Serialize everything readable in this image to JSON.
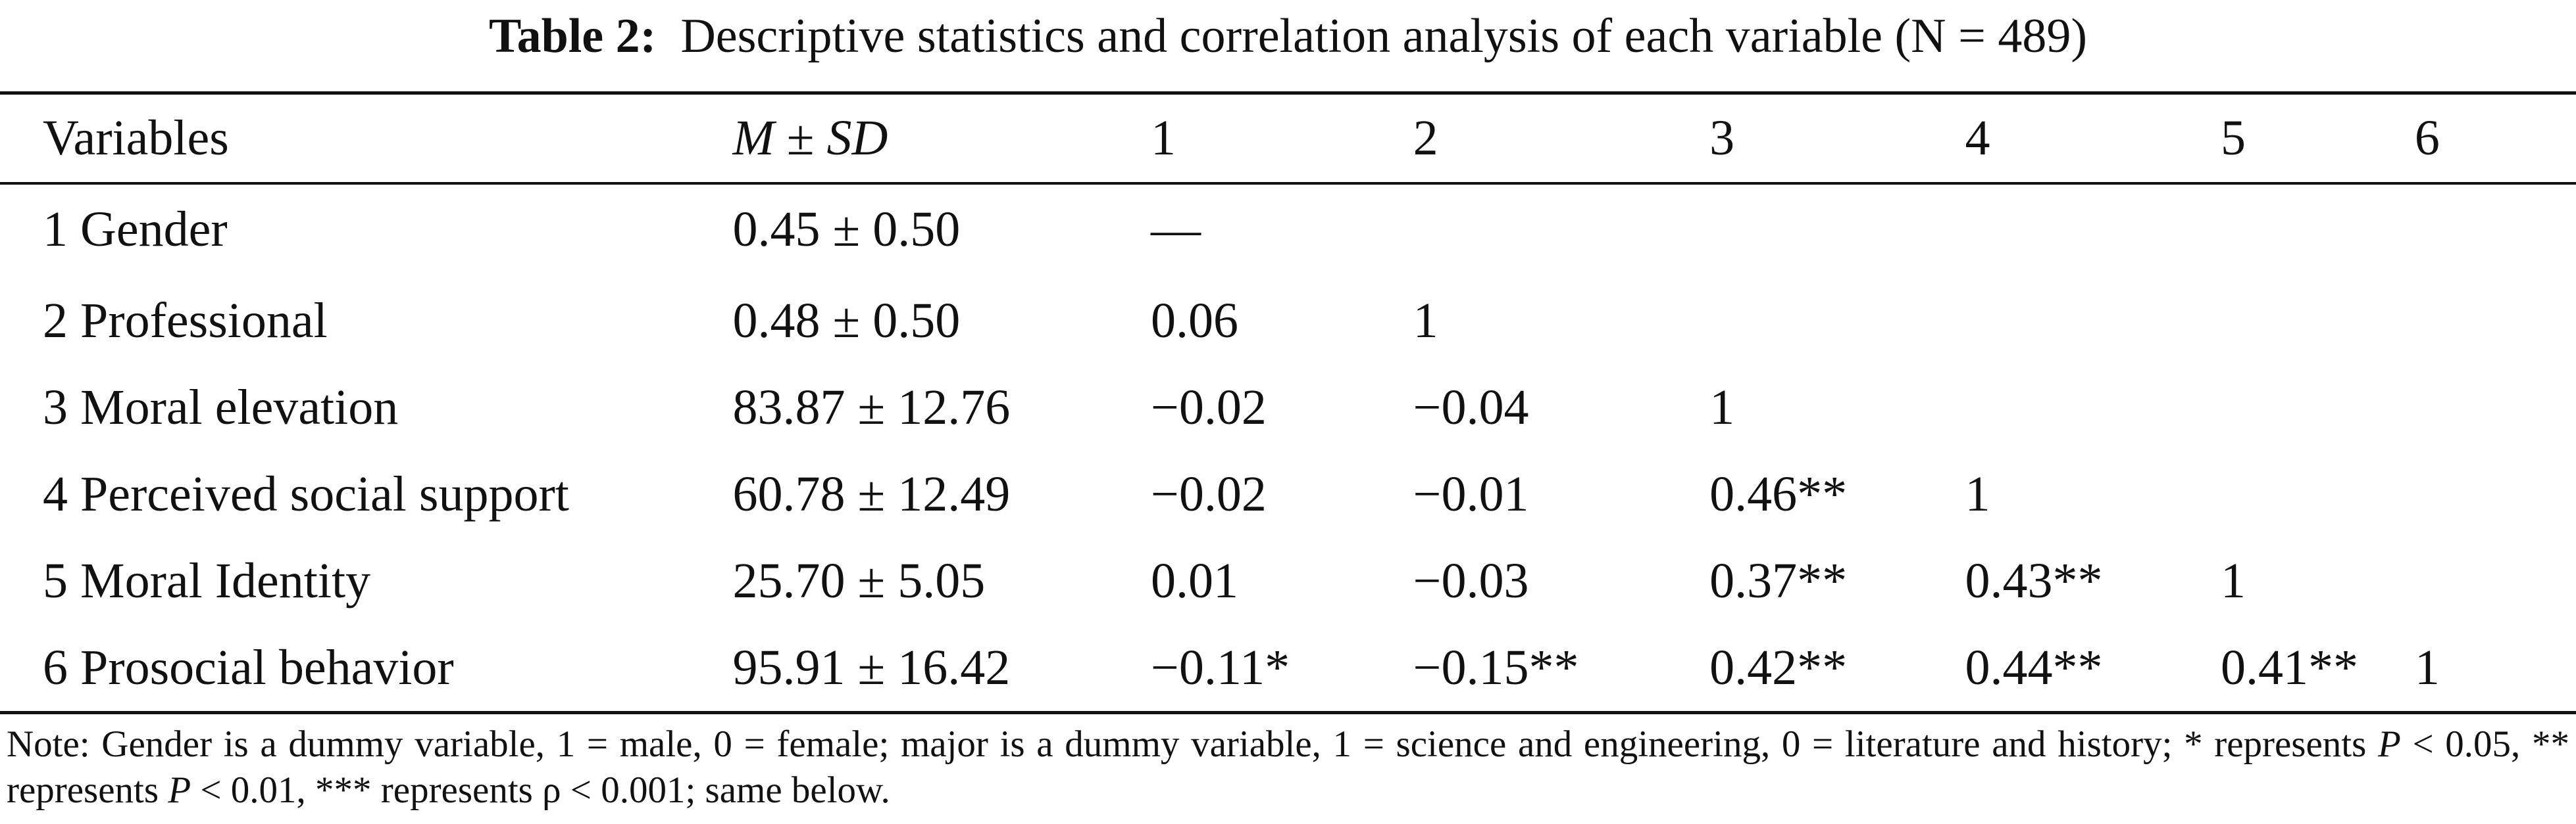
{
  "caption": {
    "label": "Table 2:",
    "text": "Descriptive statistics and correlation analysis of each variable (N = 489)"
  },
  "table": {
    "headers": {
      "variables": "Variables",
      "m": "M",
      "pm": " ± ",
      "sd": "SD",
      "cols": [
        "1",
        "2",
        "3",
        "4",
        "5",
        "6"
      ]
    },
    "rows": [
      {
        "variable": "1 Gender",
        "msd": "0.45 ± 0.50",
        "c": [
          "—",
          "",
          "",
          "",
          "",
          ""
        ]
      },
      {
        "variable": "2 Professional",
        "msd": "0.48 ± 0.50",
        "c": [
          "0.06",
          "1",
          "",
          "",
          "",
          ""
        ]
      },
      {
        "variable": "3 Moral elevation",
        "msd": "83.87 ± 12.76",
        "c": [
          "−0.02",
          "−0.04",
          "1",
          "",
          "",
          ""
        ]
      },
      {
        "variable": "4 Perceived social support",
        "msd": "60.78 ± 12.49",
        "c": [
          "−0.02",
          "−0.01",
          "0.46**",
          "1",
          "",
          ""
        ]
      },
      {
        "variable": "5 Moral Identity",
        "msd": "25.70 ± 5.05",
        "c": [
          "0.01",
          "−0.03",
          "0.37**",
          "0.43**",
          "1",
          ""
        ]
      },
      {
        "variable": "6 Prosocial behavior",
        "msd": "95.91 ± 16.42",
        "c": [
          "−0.11*",
          "−0.15**",
          "0.42**",
          "0.44**",
          "0.41**",
          "1"
        ]
      }
    ]
  },
  "note": {
    "part1": "Note: Gender is a dummy variable, 1 = male, 0 = female; major is a dummy variable, 1 = science and engineering, 0 = literature and history; * represents ",
    "p1": "P",
    "part2": " < 0.05, ** represents ",
    "p2": "P",
    "part3": " < 0.01, *** represents ρ < 0.001; same below."
  }
}
